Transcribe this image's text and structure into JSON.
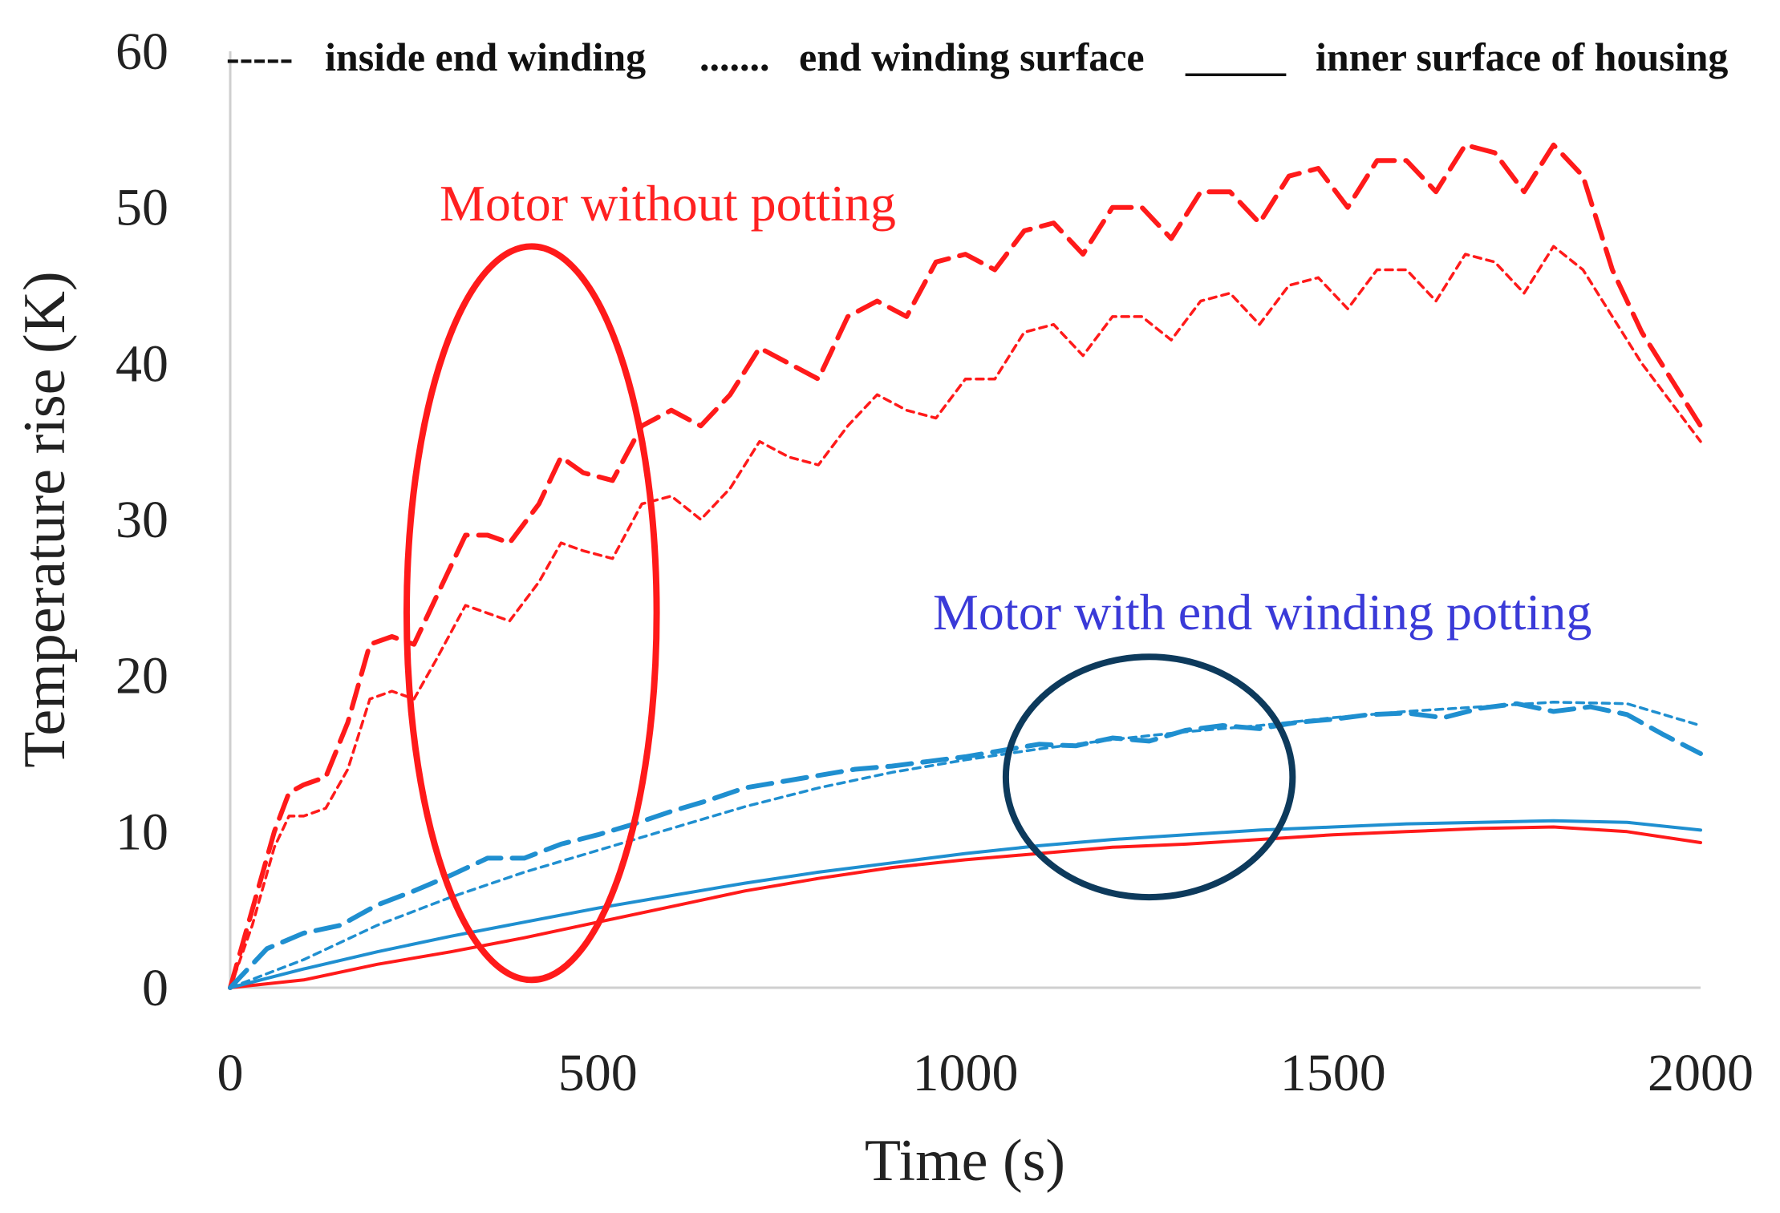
{
  "chart_data": {
    "type": "line",
    "xlabel": "Time (s)",
    "ylabel": "Temperature  rise (K)",
    "xlim": [
      0,
      2000
    ],
    "ylim": [
      0,
      60
    ],
    "x_ticks": [
      0,
      500,
      1000,
      1500,
      2000
    ],
    "y_ticks": [
      0,
      10,
      20,
      30,
      40,
      50,
      60
    ],
    "grid": false,
    "legend": [
      {
        "key": "inside",
        "sample": "-----",
        "label": "inside end winding"
      },
      {
        "key": "surface",
        "sample": ".......",
        "label": "end winding surface"
      },
      {
        "key": "housing",
        "sample": "_____",
        "label": "inner surface of housing"
      }
    ],
    "series": [
      {
        "name": "Motor without potting - inside end winding",
        "color": "#ff1a1a",
        "style": "dash",
        "x": [
          0,
          30,
          60,
          80,
          100,
          130,
          160,
          190,
          220,
          250,
          280,
          320,
          350,
          380,
          420,
          450,
          480,
          520,
          560,
          600,
          640,
          680,
          720,
          760,
          800,
          840,
          880,
          920,
          960,
          1000,
          1040,
          1080,
          1120,
          1160,
          1200,
          1240,
          1280,
          1320,
          1360,
          1400,
          1440,
          1480,
          1520,
          1560,
          1600,
          1640,
          1680,
          1720,
          1760,
          1800,
          1840,
          1880,
          1920,
          1960,
          2000
        ],
        "y": [
          0,
          5,
          10,
          12.5,
          13,
          13.5,
          17,
          22,
          22.5,
          22,
          25,
          29,
          29,
          28.5,
          31,
          34,
          33,
          32.5,
          36,
          37,
          36,
          38,
          41,
          40,
          39,
          43,
          44,
          43,
          46.5,
          47,
          46,
          48.5,
          49,
          47,
          50,
          50,
          48,
          51,
          51,
          49,
          52,
          52.5,
          50,
          53,
          53,
          51,
          54,
          53.5,
          51,
          54,
          52,
          46,
          42,
          39,
          36
        ]
      },
      {
        "name": "Motor without potting - end winding surface",
        "color": "#ff1a1a",
        "style": "dot",
        "x": [
          0,
          30,
          60,
          80,
          100,
          130,
          160,
          190,
          220,
          250,
          280,
          320,
          350,
          380,
          420,
          450,
          480,
          520,
          560,
          600,
          640,
          680,
          720,
          760,
          800,
          840,
          880,
          920,
          960,
          1000,
          1040,
          1080,
          1120,
          1160,
          1200,
          1240,
          1280,
          1320,
          1360,
          1400,
          1440,
          1480,
          1520,
          1560,
          1600,
          1640,
          1680,
          1720,
          1760,
          1800,
          1840,
          1880,
          1920,
          1960,
          2000
        ],
        "y": [
          0,
          4,
          9,
          11,
          11,
          11.5,
          14,
          18.5,
          19,
          18.5,
          21,
          24.5,
          24,
          23.5,
          26,
          28.5,
          28,
          27.5,
          31,
          31.5,
          30,
          32,
          35,
          34,
          33.5,
          36,
          38,
          37,
          36.5,
          39,
          39,
          42,
          42.5,
          40.5,
          43,
          43,
          41.5,
          44,
          44.5,
          42.5,
          45,
          45.5,
          43.5,
          46,
          46,
          44,
          47,
          46.5,
          44.5,
          47.5,
          46,
          43,
          40,
          37.5,
          35
        ]
      },
      {
        "name": "Motor without potting - inner surface of housing",
        "color": "#ff1a1a",
        "style": "solid",
        "x": [
          0,
          100,
          200,
          300,
          400,
          500,
          600,
          700,
          800,
          900,
          1000,
          1100,
          1200,
          1300,
          1400,
          1500,
          1600,
          1700,
          1800,
          1900,
          2000
        ],
        "y": [
          0,
          0.5,
          1.5,
          2.3,
          3.2,
          4.2,
          5.2,
          6.2,
          7,
          7.7,
          8.2,
          8.6,
          9,
          9.2,
          9.5,
          9.8,
          10,
          10.2,
          10.3,
          10,
          9.3
        ]
      },
      {
        "name": "Motor with end winding potting - inside end winding",
        "color": "#1f8fd0",
        "style": "dash",
        "x": [
          0,
          50,
          100,
          150,
          200,
          250,
          300,
          350,
          400,
          450,
          500,
          550,
          600,
          650,
          700,
          750,
          800,
          850,
          900,
          950,
          1000,
          1050,
          1100,
          1150,
          1200,
          1250,
          1300,
          1350,
          1400,
          1450,
          1500,
          1550,
          1600,
          1650,
          1700,
          1750,
          1800,
          1850,
          1900,
          1950,
          2000
        ],
        "y": [
          0,
          2.5,
          3.5,
          4,
          5.3,
          6.2,
          7.2,
          8.3,
          8.3,
          9.2,
          9.8,
          10.5,
          11.3,
          12,
          12.8,
          13.2,
          13.6,
          14,
          14.2,
          14.5,
          14.8,
          15.2,
          15.6,
          15.5,
          16,
          15.8,
          16.5,
          16.8,
          16.6,
          17,
          17.2,
          17.5,
          17.6,
          17.3,
          17.9,
          18.2,
          17.7,
          18,
          17.5,
          16.2,
          15
        ]
      },
      {
        "name": "Motor with end winding potting - end winding surface",
        "color": "#1f8fd0",
        "style": "dot",
        "x": [
          0,
          100,
          200,
          300,
          400,
          500,
          600,
          700,
          800,
          900,
          1000,
          1100,
          1200,
          1300,
          1400,
          1500,
          1600,
          1700,
          1800,
          1900,
          2000
        ],
        "y": [
          0,
          1.8,
          4,
          5.8,
          7.4,
          8.8,
          10.2,
          11.6,
          12.8,
          13.8,
          14.6,
          15.3,
          15.9,
          16.4,
          16.8,
          17.3,
          17.7,
          18,
          18.3,
          18.2,
          16.8
        ]
      },
      {
        "name": "Motor with end winding potting - inner surface of housing",
        "color": "#1f8fd0",
        "style": "solid",
        "x": [
          0,
          100,
          200,
          300,
          400,
          500,
          600,
          700,
          800,
          900,
          1000,
          1100,
          1200,
          1300,
          1400,
          1500,
          1600,
          1700,
          1800,
          1900,
          2000
        ],
        "y": [
          0,
          1.2,
          2.3,
          3.3,
          4.2,
          5.1,
          5.9,
          6.7,
          7.4,
          8,
          8.6,
          9.1,
          9.5,
          9.8,
          10.1,
          10.3,
          10.5,
          10.6,
          10.7,
          10.6,
          10.1
        ]
      }
    ],
    "annotations": [
      {
        "text": "Motor without potting",
        "color": "#ff2020"
      },
      {
        "text": "Motor with end winding potting",
        "color": "#3a3ad8"
      }
    ],
    "highlight_ellipses": [
      {
        "label": "without-potting-region",
        "color": "#ff1a1a",
        "cx": 410,
        "cy": 24,
        "rx": 170,
        "ry": 23.5
      },
      {
        "label": "with-potting-region",
        "color": "#0d3a5c",
        "cx": 1250,
        "cy": 13.5,
        "rx": 195,
        "ry": 7.7
      }
    ]
  }
}
